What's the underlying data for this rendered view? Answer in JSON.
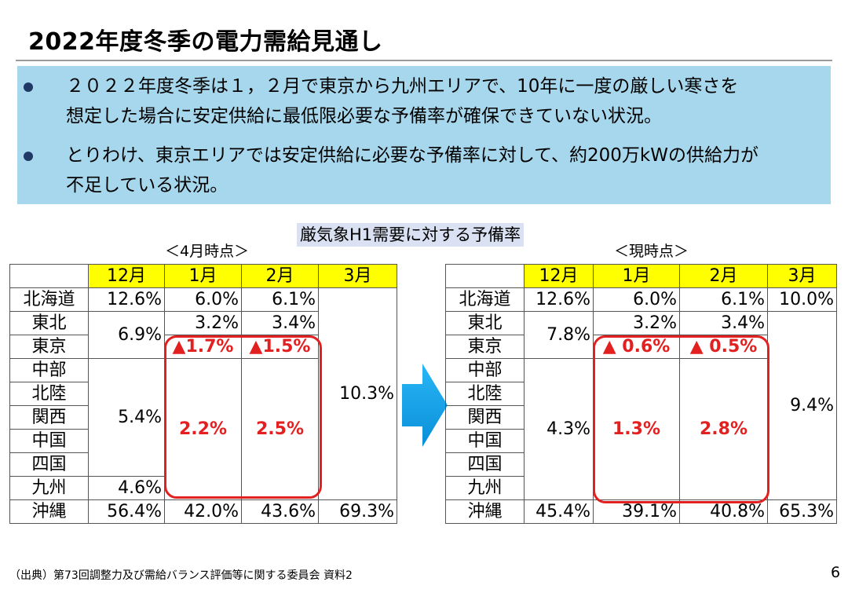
{
  "title": "2022年度冬季の電力需給見通し",
  "bullets": [
    {
      "line1": "２０２２年度冬季は１，２月で東京から九州エリアで、10年に一度の厳しい寒さを",
      "line2": "想定した場合に安定供給に最低限必要な予備率が確保できていない状況。"
    },
    {
      "line1": "とりわけ、東京エリアでは安定供給に必要な予備率に対して、約200万kWの供給力が",
      "line2": "不足している状況。"
    }
  ],
  "chart_heading": "厳気象H1需要に対する予備率",
  "left_caption": "＜4月時点＞",
  "right_caption": "＜現時点＞",
  "months": [
    "12月",
    "1月",
    "2月",
    "3月"
  ],
  "regions": {
    "hokkaido": "北海道",
    "tohoku": "東北",
    "tokyo": "東京",
    "chubu": "中部",
    "hokuriku": "北陸",
    "kansai": "関西",
    "chugoku": "中国",
    "shikoku": "四国",
    "kyushu": "九州",
    "okinawa": "沖縄"
  },
  "left": {
    "hokkaido": [
      "12.6%",
      "6.0%",
      "6.1%"
    ],
    "tohoku_tokyo_dec": "6.9%",
    "tohoku": [
      "3.2%",
      "3.4%"
    ],
    "tokyo": [
      "▲1.7%",
      "▲1.5%"
    ],
    "chubu_shikoku_dec": "5.4%",
    "middle": [
      "2.2%",
      "2.5%"
    ],
    "kyushu_dec": "4.6%",
    "mar_mainland": "10.3%",
    "okinawa": [
      "56.4%",
      "42.0%",
      "43.6%",
      "69.3%"
    ]
  },
  "right": {
    "hokkaido": [
      "12.6%",
      "6.0%",
      "6.1%",
      "10.0%"
    ],
    "tohoku_tokyo_dec": "7.8%",
    "tohoku": [
      "3.2%",
      "3.4%"
    ],
    "tokyo": [
      "▲ 0.6%",
      "▲ 0.5%"
    ],
    "chubu_kyushu_dec": "4.3%",
    "middle": [
      "1.3%",
      "2.8%"
    ],
    "mar_mainland": "9.4%",
    "okinawa": [
      "45.4%",
      "39.1%",
      "40.8%",
      "65.3%"
    ]
  },
  "colors": {
    "header_yellow": "#ffff00",
    "callout_blue": "#a7d7ec",
    "alert_red": "#e32020",
    "arrow_blue": "#1aa3e8"
  },
  "footer": "（出典）第73回調整力及び需給バランス評価等に関する委員会 資料2",
  "page_number": "6"
}
